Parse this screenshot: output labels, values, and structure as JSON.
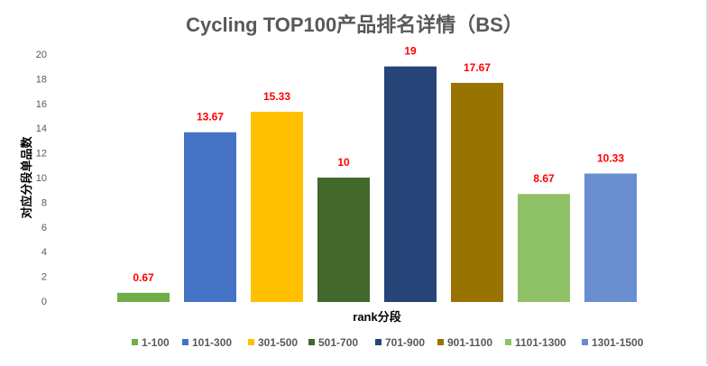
{
  "chart_data": {
    "type": "bar",
    "title": "Cycling TOP100产品排名详情（BS）",
    "xlabel": "rank分段",
    "ylabel": "对应分段单品数",
    "ylim": [
      0,
      20
    ],
    "yticks": [
      0,
      2,
      4,
      6,
      8,
      10,
      12,
      14,
      16,
      18,
      20
    ],
    "grid": false,
    "legend_position": "bottom",
    "categories": [
      "1-100",
      "101-300",
      "301-500",
      "501-700",
      "701-900",
      "901-1100",
      "1101-1300",
      "1301-1500"
    ],
    "values": [
      0.67,
      13.67,
      15.33,
      10,
      19,
      17.67,
      8.67,
      10.33
    ],
    "data_labels": [
      "0.67",
      "13.67",
      "15.33",
      "10",
      "19",
      "17.67",
      "8.67",
      "10.33"
    ],
    "colors": [
      "#70AD47",
      "#4472C4",
      "#FFC000",
      "#43682B",
      "#264478",
      "#997300",
      "#8FC266",
      "#698ED0"
    ],
    "label_color": "#FF0000"
  }
}
